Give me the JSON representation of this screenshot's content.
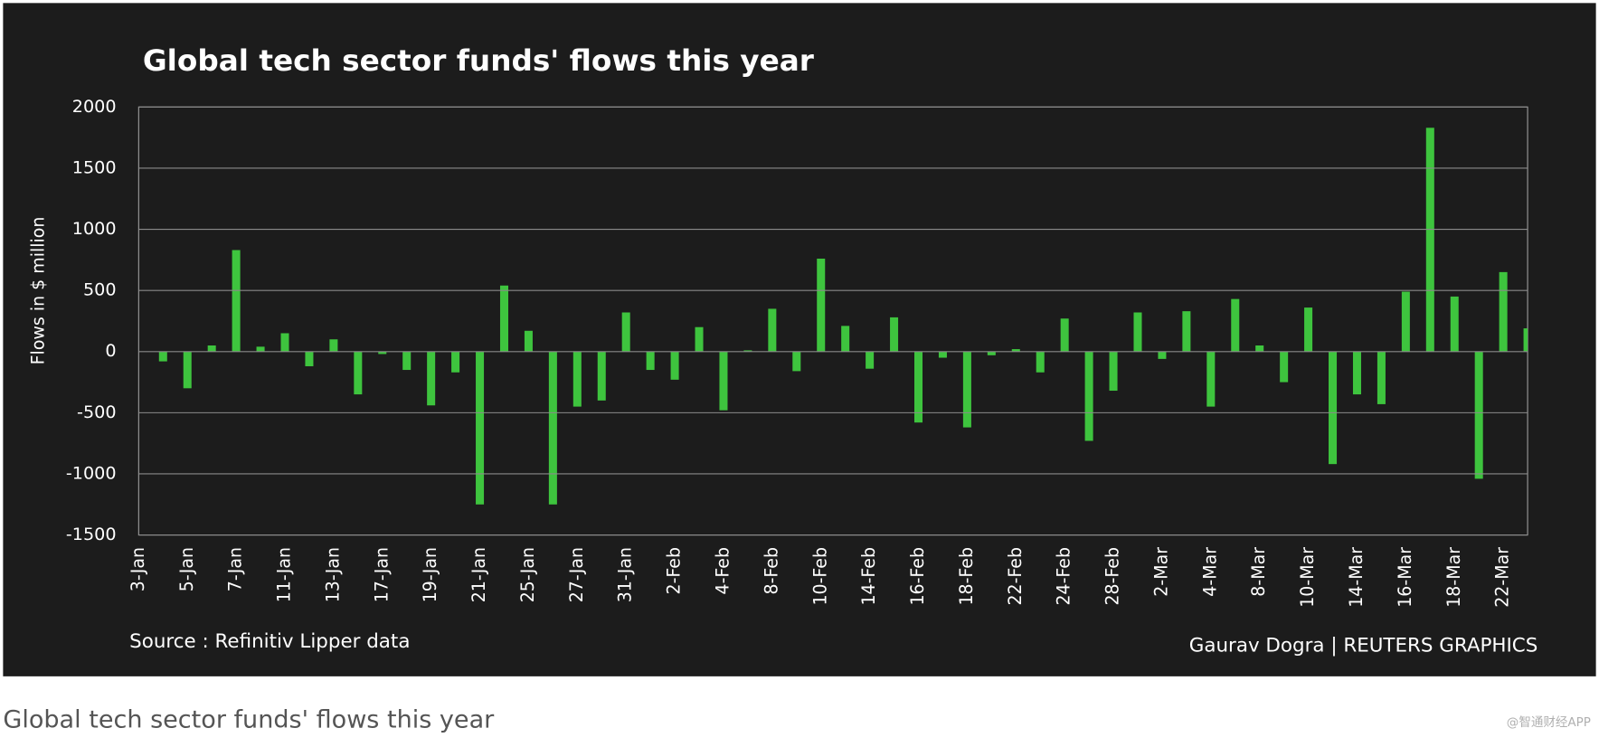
{
  "chart_data": {
    "type": "bar",
    "title": "Global tech sector funds' flows this year",
    "y_label": "Flows in $ million",
    "source": "Source : Refinitiv Lipper data",
    "credit": "Gaurav Dogra | REUTERS GRAPHICS",
    "caption": "Global tech sector funds' flows this year",
    "watermark": "@智通财经APP",
    "categories": [
      "3-Jan",
      null,
      "5-Jan",
      null,
      "7-Jan",
      null,
      "11-Jan",
      null,
      "13-Jan",
      null,
      "17-Jan",
      null,
      "19-Jan",
      null,
      "21-Jan",
      null,
      "25-Jan",
      null,
      "27-Jan",
      null,
      "31-Jan",
      null,
      "2-Feb",
      null,
      "4-Feb",
      null,
      "8-Feb",
      null,
      "10-Feb",
      null,
      "14-Feb",
      null,
      "16-Feb",
      null,
      "18-Feb",
      null,
      "22-Feb",
      null,
      "24-Feb",
      null,
      "28-Feb",
      null,
      "2-Mar",
      null,
      "4-Mar",
      null,
      "8-Mar",
      null,
      "10-Mar",
      null,
      "14-Mar",
      null,
      "16-Mar",
      null,
      "18-Mar",
      null,
      "22-Mar",
      null
    ],
    "values": [
      0,
      -80,
      -300,
      50,
      830,
      40,
      150,
      -120,
      100,
      -350,
      -20,
      -150,
      -440,
      -170,
      -1250,
      540,
      170,
      -1250,
      -450,
      -400,
      320,
      -150,
      -230,
      200,
      -480,
      10,
      350,
      -160,
      760,
      210,
      -140,
      280,
      -580,
      -50,
      -620,
      -30,
      20,
      -170,
      270,
      -730,
      -320,
      320,
      -60,
      330,
      -450,
      430,
      50,
      -250,
      360,
      -920,
      -350,
      -430,
      490,
      1830,
      450,
      -1040,
      650,
      190
    ],
    "color": "#3ec43e",
    "ylim": [
      -1500,
      2000
    ],
    "yticks": [
      -1500,
      -1000,
      -500,
      0,
      500,
      1000,
      1500,
      2000
    ],
    "grid": true
  }
}
